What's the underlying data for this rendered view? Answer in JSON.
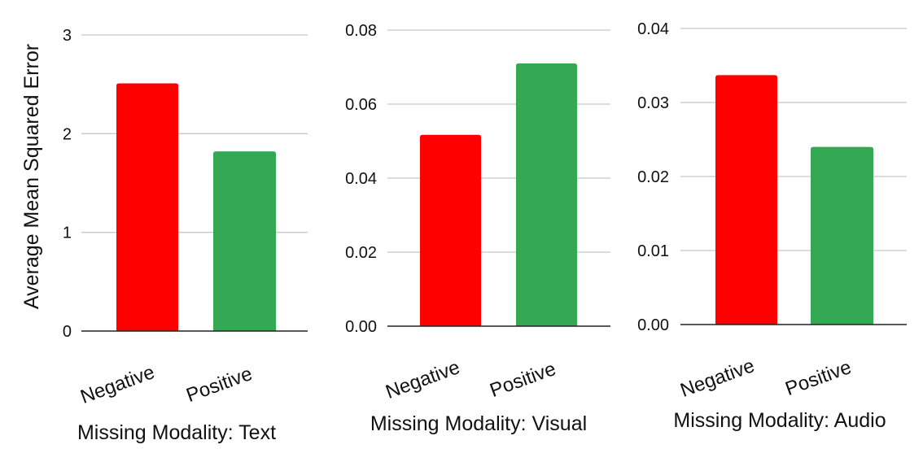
{
  "figure": {
    "ylabel": "Average Mean Squared Error"
  },
  "colors": {
    "negative": "#ff0000",
    "positive": "#34a853"
  },
  "chart_data": [
    {
      "type": "bar",
      "categories": [
        "Negative",
        "Positive"
      ],
      "values": [
        2.51,
        1.82
      ],
      "xlabel": "Missing Modality: Text",
      "ylabel": "Average Mean Squared Error",
      "ylim": [
        0,
        3
      ],
      "yticks": [
        "0",
        "1",
        "2",
        "3"
      ],
      "grid": true
    },
    {
      "type": "bar",
      "categories": [
        "Negative",
        "Positive"
      ],
      "values": [
        0.0517,
        0.071
      ],
      "xlabel": "Missing Modality: Visual",
      "ylabel": "",
      "ylim": [
        0,
        0.08
      ],
      "yticks": [
        "0.00",
        "0.02",
        "0.04",
        "0.06",
        "0.08"
      ],
      "grid": true
    },
    {
      "type": "bar",
      "categories": [
        "Negative",
        "Positive"
      ],
      "values": [
        0.0337,
        0.024
      ],
      "xlabel": "Missing Modality: Audio",
      "ylabel": "",
      "ylim": [
        0,
        0.04
      ],
      "yticks": [
        "0.00",
        "0.01",
        "0.02",
        "0.03",
        "0.04"
      ],
      "grid": true
    }
  ]
}
